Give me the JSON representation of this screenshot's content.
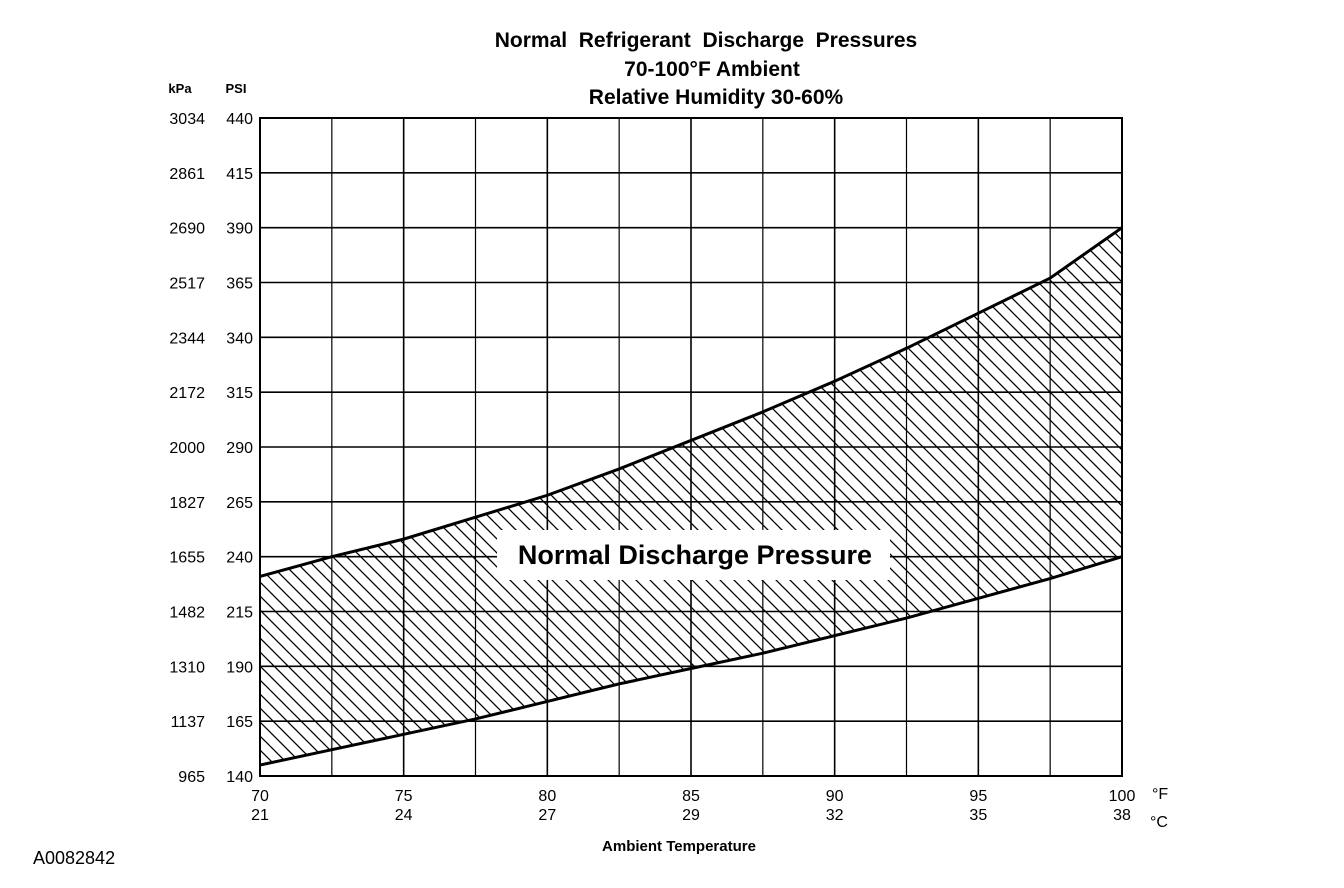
{
  "figure_id": "A0082842",
  "chart_data": {
    "type": "area",
    "title": [
      "Normal  Refrigerant  Discharge  Pressures",
      "70-100°F Ambient",
      "Relative Humidity 30-60%"
    ],
    "xlabel": "Ambient Temperature",
    "x_units": [
      "°F",
      "°C"
    ],
    "y_units": [
      "kPa",
      "PSI"
    ],
    "xlim": [
      70,
      100
    ],
    "ylim": [
      140,
      440
    ],
    "x_ticks": [
      {
        "f": "70",
        "c": "21"
      },
      {
        "f": "75",
        "c": "24"
      },
      {
        "f": "80",
        "c": "27"
      },
      {
        "f": "85",
        "c": "29"
      },
      {
        "f": "90",
        "c": "32"
      },
      {
        "f": "95",
        "c": "35"
      },
      {
        "f": "100",
        "c": "38"
      }
    ],
    "y_ticks": [
      {
        "psi": "440",
        "kpa": "3034"
      },
      {
        "psi": "415",
        "kpa": "2861"
      },
      {
        "psi": "390",
        "kpa": "2690"
      },
      {
        "psi": "365",
        "kpa": "2517"
      },
      {
        "psi": "340",
        "kpa": "2344"
      },
      {
        "psi": "315",
        "kpa": "2172"
      },
      {
        "psi": "290",
        "kpa": "2000"
      },
      {
        "psi": "265",
        "kpa": "1827"
      },
      {
        "psi": "240",
        "kpa": "1655"
      },
      {
        "psi": "215",
        "kpa": "1482"
      },
      {
        "psi": "190",
        "kpa": "1310"
      },
      {
        "psi": "165",
        "kpa": "1137"
      },
      {
        "psi": "140",
        "kpa": "965"
      }
    ],
    "grid": true,
    "band": {
      "name": "Normal Discharge Pressure",
      "x": [
        70,
        72.5,
        75,
        77.5,
        80,
        82.5,
        85,
        87.5,
        90,
        92.5,
        95,
        97.5,
        100
      ],
      "upper": [
        231,
        240,
        248,
        258,
        268,
        280,
        293,
        306,
        320,
        335,
        351,
        367,
        390
      ],
      "lower": [
        145,
        152,
        159,
        166,
        174,
        182,
        189,
        196,
        204,
        212,
        221,
        230,
        240
      ]
    }
  }
}
